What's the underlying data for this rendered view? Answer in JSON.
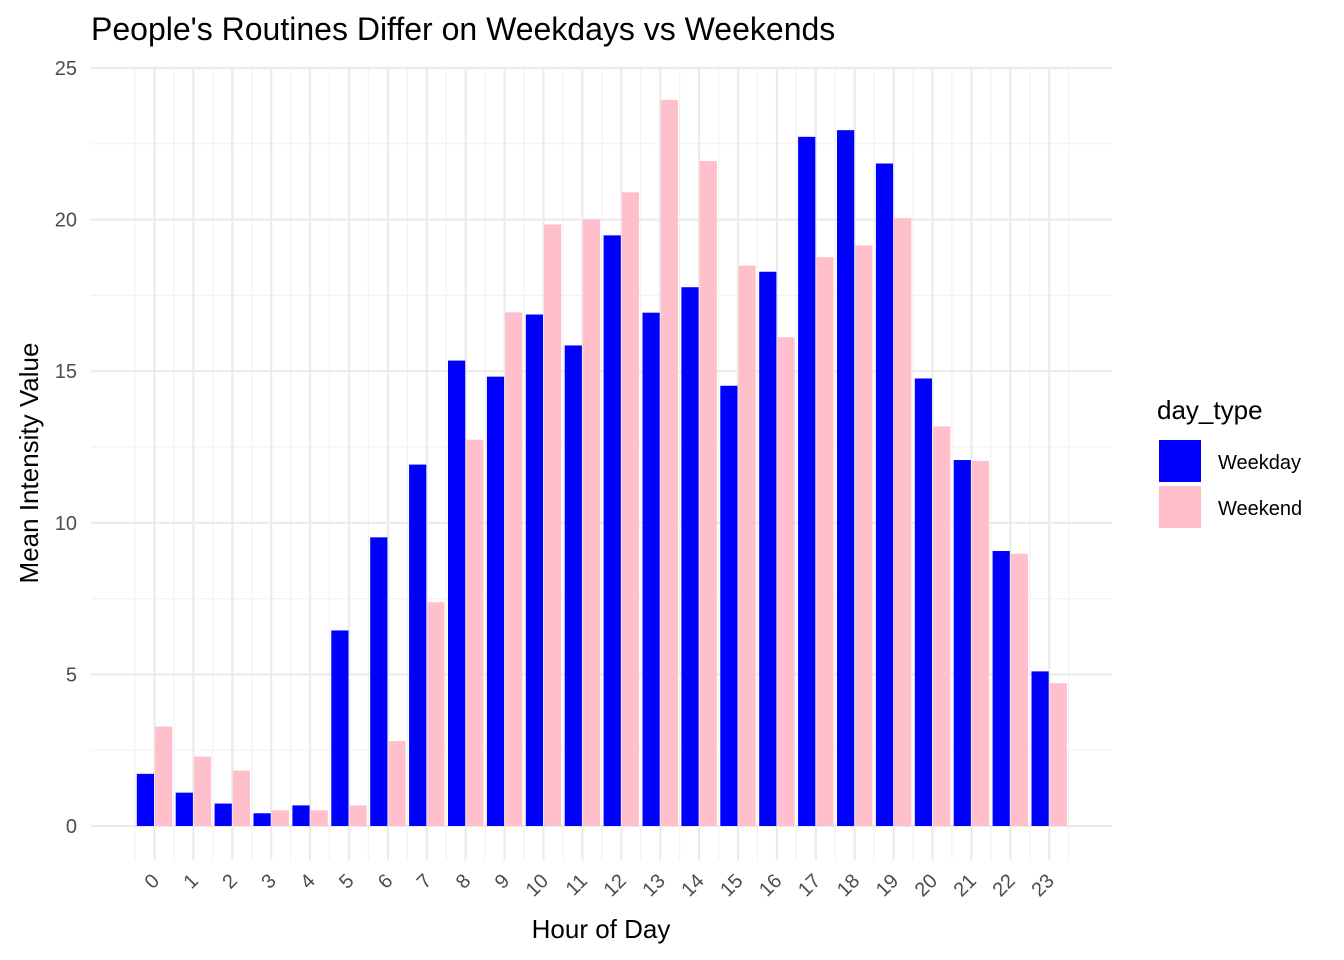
{
  "chart_data": {
    "type": "bar",
    "title": "People's Routines Differ on Weekdays vs Weekends",
    "xlabel": "Hour of Day",
    "ylabel": "Mean Intensity Value",
    "categories": [
      "0",
      "1",
      "2",
      "3",
      "4",
      "5",
      "6",
      "7",
      "8",
      "9",
      "10",
      "11",
      "12",
      "13",
      "14",
      "15",
      "16",
      "17",
      "18",
      "19",
      "20",
      "21",
      "22",
      "23"
    ],
    "ylim": [
      0,
      25
    ],
    "yticks": [
      "0",
      "5",
      "10",
      "15",
      "20",
      "25"
    ],
    "grid": true,
    "legend": {
      "title": "day_type",
      "position": "right"
    },
    "series": [
      {
        "name": "Weekday",
        "color": "#0000FF",
        "values": [
          1.72,
          1.1,
          0.74,
          0.42,
          0.68,
          6.45,
          9.52,
          11.92,
          15.35,
          14.82,
          16.87,
          15.85,
          19.48,
          16.93,
          17.77,
          14.52,
          18.28,
          22.73,
          22.95,
          21.85,
          14.76,
          12.07,
          9.07,
          5.1
        ]
      },
      {
        "name": "Weekend",
        "color": "#FFC0CB",
        "values": [
          3.28,
          2.29,
          1.83,
          0.52,
          0.52,
          0.68,
          2.8,
          7.38,
          12.74,
          16.94,
          19.84,
          20.0,
          20.9,
          23.95,
          21.93,
          18.48,
          16.12,
          18.76,
          19.15,
          20.05,
          13.18,
          12.04,
          8.98,
          4.71
        ]
      }
    ]
  }
}
